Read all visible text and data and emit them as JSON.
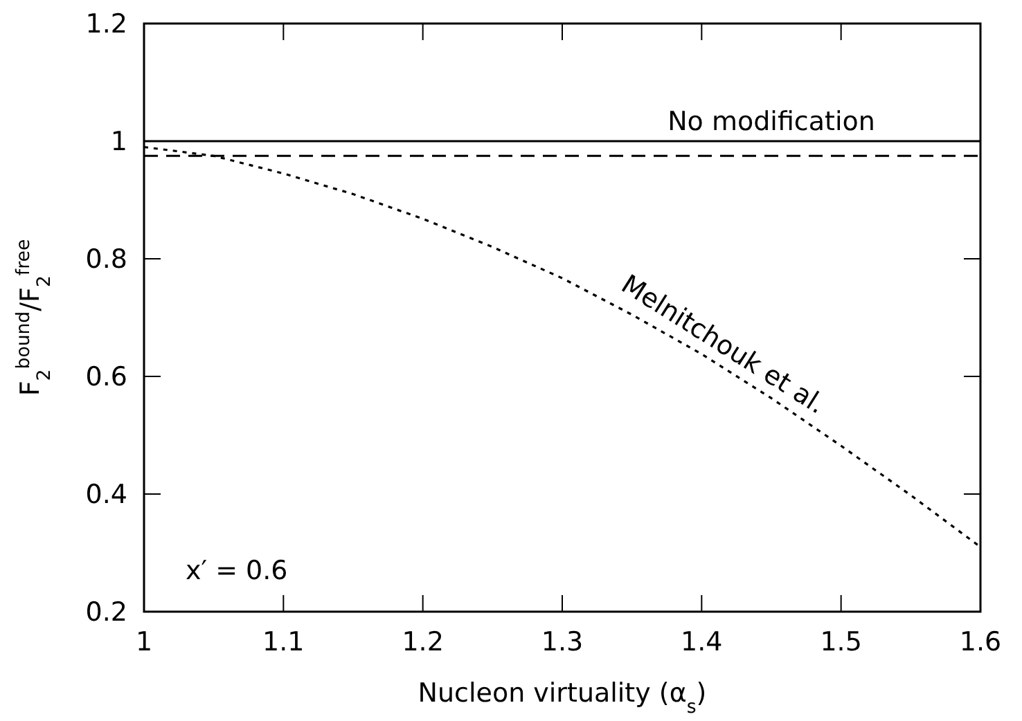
{
  "chart_data": {
    "type": "line",
    "xlabel": "Nucleon virtuality (α$_{s}$)",
    "ylabel": "F$_{2}$$^{bound}$/F$_{2}$$^{free}$",
    "xlim": [
      1,
      1.6
    ],
    "ylim": [
      0.2,
      1.2
    ],
    "xticks": [
      1,
      1.1,
      1.2,
      1.3,
      1.4,
      1.5,
      1.6
    ],
    "yticks": [
      0.2,
      0.4,
      0.6,
      0.8,
      1,
      1.2
    ],
    "grid": false,
    "series": [
      {
        "name": "No modification",
        "color": "#000000",
        "line_style": "solid",
        "x": [
          1,
          1.6
        ],
        "values": [
          1,
          1
        ]
      },
      {
        "color": "#000000",
        "line_style": "dashed",
        "x": [
          1,
          1.6
        ],
        "values": [
          0.975,
          0.975
        ]
      },
      {
        "name": "Melnitchouk et al.",
        "color": "#000000",
        "line_style": "dotted",
        "x": [
          1,
          1.05,
          1.1,
          1.15,
          1.2,
          1.25,
          1.3,
          1.35,
          1.4,
          1.45,
          1.5,
          1.55,
          1.6
        ],
        "values": [
          0.99,
          0.975,
          0.945,
          0.91,
          0.868,
          0.82,
          0.767,
          0.705,
          0.638,
          0.563,
          0.482,
          0.398,
          0.31
        ]
      }
    ],
    "annotations": [
      "x′ = 0.6"
    ]
  }
}
